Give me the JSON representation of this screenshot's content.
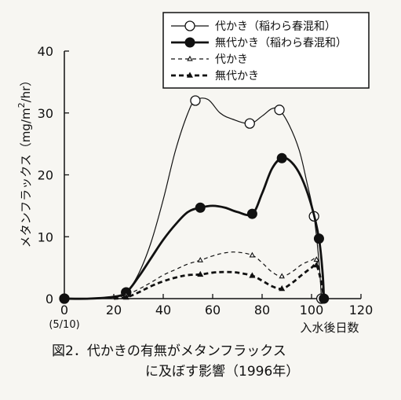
{
  "chart_data": {
    "type": "line",
    "ylabel": "メタンフラックス（mg/m²/hr）",
    "ylabel_parts": {
      "main": "メタンフラックス（mg/m",
      "sup": "2",
      "tail": "/hr）"
    },
    "xlabel": "入水後日数",
    "xlim": [
      0,
      120
    ],
    "ylim": [
      0,
      40
    ],
    "xticks": [
      0,
      20,
      40,
      60,
      80,
      100,
      120
    ],
    "yticks": [
      0,
      10,
      20,
      30,
      40
    ],
    "x_start_note": "(5/10)",
    "grid": false,
    "legend_position": "top-right",
    "series": [
      {
        "name": "代かき（稲わら春混和）",
        "style": "thin-solid",
        "marker": "open-circle",
        "color": "#111111",
        "x": [
          0,
          25,
          53,
          75,
          87,
          101,
          104
        ],
        "y": [
          0,
          1.0,
          32.0,
          28.3,
          30.5,
          13.3,
          0
        ],
        "curve": [
          [
            0,
            0
          ],
          [
            10,
            0
          ],
          [
            20,
            0.3
          ],
          [
            25,
            1.0
          ],
          [
            30,
            4
          ],
          [
            35,
            9
          ],
          [
            40,
            16
          ],
          [
            45,
            24
          ],
          [
            50,
            30
          ],
          [
            53,
            32
          ],
          [
            58,
            32.2
          ],
          [
            63,
            30
          ],
          [
            68,
            29
          ],
          [
            75,
            28.3
          ],
          [
            80,
            29.5
          ],
          [
            84,
            30.7
          ],
          [
            87,
            30.5
          ],
          [
            91,
            28
          ],
          [
            95,
            24
          ],
          [
            98,
            19
          ],
          [
            101,
            13.3
          ],
          [
            103,
            6
          ],
          [
            104,
            0
          ]
        ]
      },
      {
        "name": "無代かき（稲わら春混和）",
        "style": "thick-solid",
        "marker": "filled-circle",
        "color": "#111111",
        "x": [
          0,
          25,
          55,
          76,
          88,
          103,
          105
        ],
        "y": [
          0,
          1.0,
          14.7,
          13.7,
          22.7,
          9.7,
          0
        ],
        "curve": [
          [
            0,
            0
          ],
          [
            10,
            0
          ],
          [
            20,
            0.3
          ],
          [
            25,
            1.0
          ],
          [
            30,
            3.5
          ],
          [
            35,
            6.5
          ],
          [
            40,
            9.5
          ],
          [
            45,
            12
          ],
          [
            50,
            14
          ],
          [
            55,
            14.7
          ],
          [
            60,
            15
          ],
          [
            65,
            14.7
          ],
          [
            70,
            14
          ],
          [
            76,
            13.7
          ],
          [
            80,
            17
          ],
          [
            84,
            21
          ],
          [
            88,
            22.7
          ],
          [
            92,
            22
          ],
          [
            96,
            19.5
          ],
          [
            100,
            15
          ],
          [
            103,
            9.7
          ],
          [
            104.5,
            4
          ],
          [
            105,
            0
          ]
        ]
      },
      {
        "name": "代かき",
        "style": "thin-dashed",
        "marker": "open-triangle",
        "color": "#111111",
        "x": [
          25,
          55,
          76,
          88,
          102
        ],
        "y": [
          0.6,
          6.2,
          7.0,
          3.6,
          6.3
        ],
        "curve": [
          [
            20,
            0
          ],
          [
            25,
            0.6
          ],
          [
            30,
            1.5
          ],
          [
            35,
            2.6
          ],
          [
            40,
            3.8
          ],
          [
            45,
            4.7
          ],
          [
            50,
            5.6
          ],
          [
            55,
            6.2
          ],
          [
            60,
            6.9
          ],
          [
            65,
            7.4
          ],
          [
            70,
            7.5
          ],
          [
            76,
            7.0
          ],
          [
            80,
            5.8
          ],
          [
            84,
            4.3
          ],
          [
            88,
            3.6
          ],
          [
            92,
            4.3
          ],
          [
            96,
            5.5
          ],
          [
            100,
            6.2
          ],
          [
            102,
            6.3
          ],
          [
            104,
            3
          ],
          [
            105,
            0
          ]
        ]
      },
      {
        "name": "無代かき",
        "style": "thick-dashed",
        "marker": "filled-triangle",
        "color": "#111111",
        "x": [
          25,
          55,
          76,
          88,
          102
        ],
        "y": [
          0.2,
          3.9,
          3.7,
          1.6,
          5.4
        ],
        "curve": [
          [
            20,
            0
          ],
          [
            25,
            0.2
          ],
          [
            30,
            1.0
          ],
          [
            35,
            2.0
          ],
          [
            40,
            2.8
          ],
          [
            45,
            3.4
          ],
          [
            50,
            3.8
          ],
          [
            55,
            3.9
          ],
          [
            60,
            4.2
          ],
          [
            65,
            4.3
          ],
          [
            70,
            4.2
          ],
          [
            76,
            3.7
          ],
          [
            80,
            2.9
          ],
          [
            84,
            2.0
          ],
          [
            88,
            1.6
          ],
          [
            92,
            2.5
          ],
          [
            96,
            3.8
          ],
          [
            100,
            5.0
          ],
          [
            102,
            5.4
          ],
          [
            104,
            2.5
          ],
          [
            105,
            0
          ]
        ]
      }
    ],
    "caption": [
      "図2．代かきの有無がメタンフラックス",
      "に及ぼす影響（1996年）"
    ]
  }
}
